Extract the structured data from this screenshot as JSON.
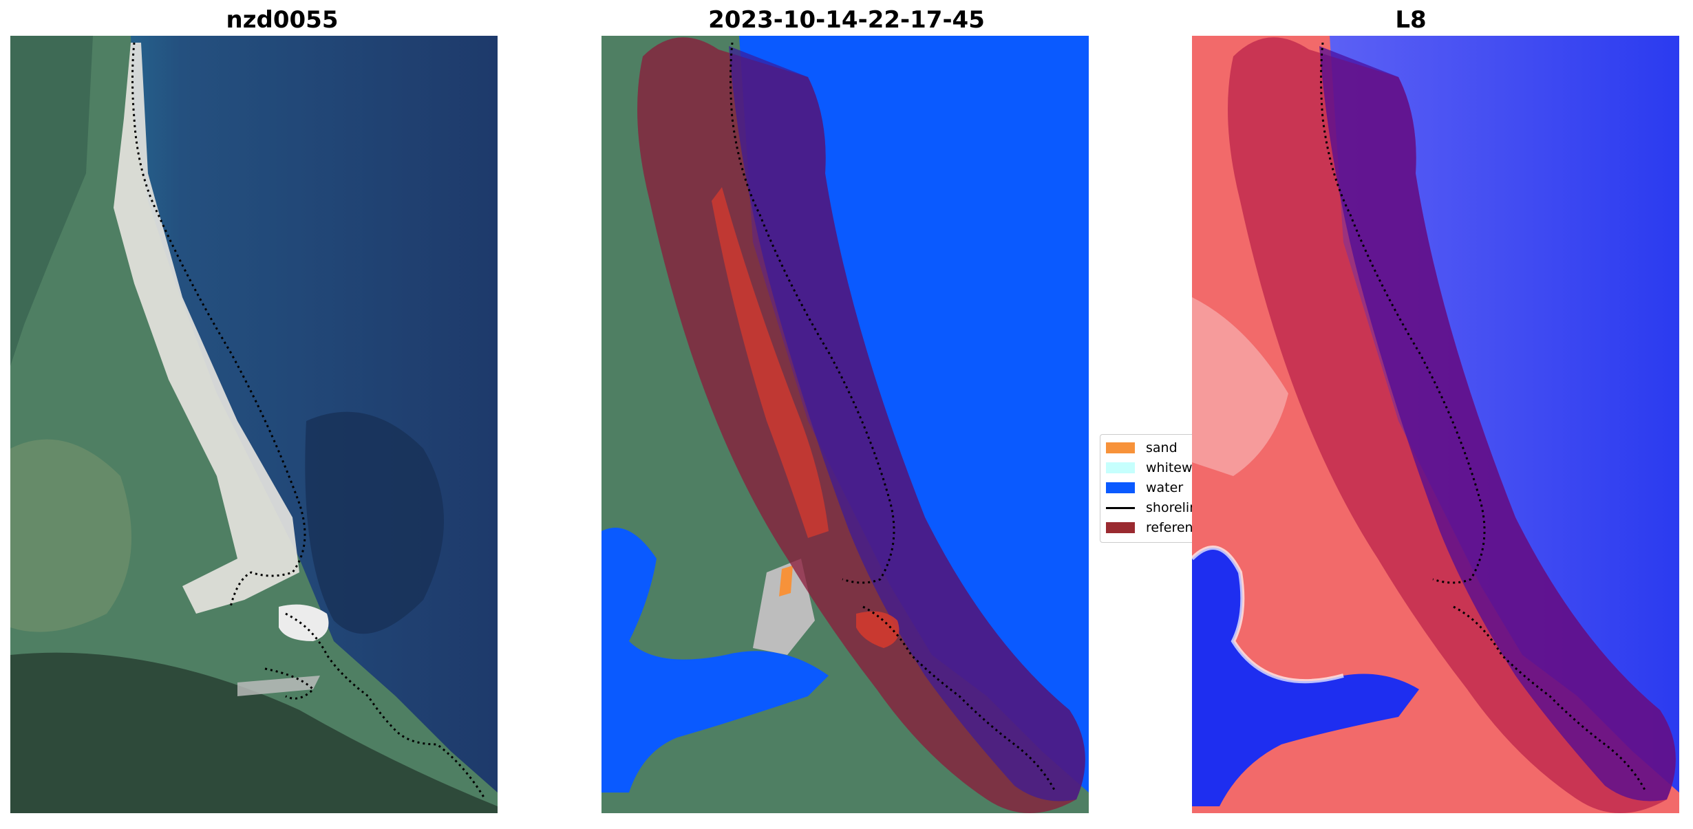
{
  "panels": [
    {
      "title": "nzd0055"
    },
    {
      "title": "2023-10-14-22-17-45"
    },
    {
      "title": "L8"
    }
  ],
  "legend": {
    "items": [
      {
        "label": "sand",
        "color": "#f7923a",
        "kind": "patch"
      },
      {
        "label": "whitewater",
        "color": "#c6fffd",
        "kind": "patch"
      },
      {
        "label": "water",
        "color": "#0a5aff",
        "kind": "patch"
      },
      {
        "label": "shoreline",
        "color": "#000000",
        "kind": "line"
      },
      {
        "label": "reference shoreline buffer",
        "color": "#9a2a30",
        "kind": "patch"
      }
    ]
  },
  "colors": {
    "ocean_deep": "#1e3a6b",
    "ocean_shallow": "#2f86a8",
    "land_green": "#4f7f63",
    "sand_white": "#e8e6e0",
    "class_water": "#0a5aff",
    "buffer_overlay": "#8b1a3a",
    "index_red": "#f04a4a",
    "index_blue": "#1e2ef0"
  }
}
